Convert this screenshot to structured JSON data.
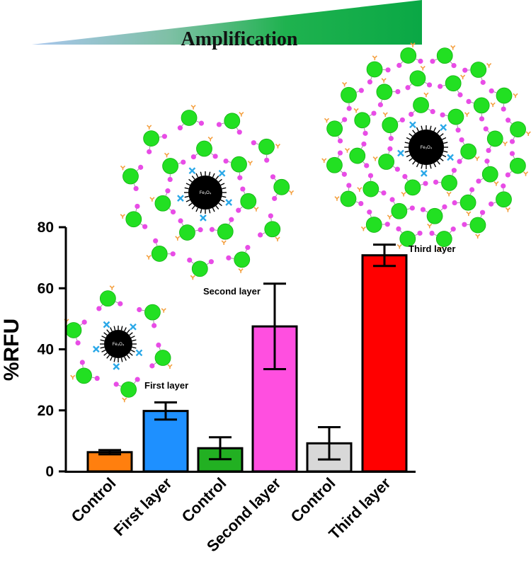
{
  "banner": {
    "label": "Amplification"
  },
  "chart_data": {
    "type": "bar",
    "categories": [
      "Control",
      "First layer",
      "Control",
      "Second layer",
      "Control",
      "Third layer"
    ],
    "values": [
      6.3,
      19.8,
      7.6,
      47.5,
      9.2,
      70.8
    ],
    "errors": [
      0.7,
      2.8,
      3.6,
      14.0,
      5.3,
      3.5
    ],
    "bar_colors": [
      "#ff7f0e",
      "#1e90ff",
      "#22b022",
      "#ff4fe0",
      "#d8d8d8",
      "#ff0000"
    ],
    "ylabel": "%RFU",
    "xlabel": "",
    "ylim": [
      0,
      80
    ],
    "yticks": [
      0,
      20,
      40,
      60,
      80
    ],
    "grid": false
  },
  "illustrations": {
    "core_label": "Fe₃O₄",
    "first": {
      "label": "First layer"
    },
    "second": {
      "label": "Second layer"
    },
    "third": {
      "label": "Third layer"
    }
  }
}
